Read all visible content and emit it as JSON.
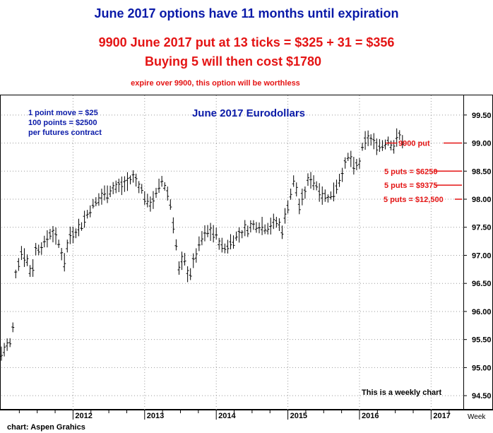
{
  "header": {
    "line1": "June 2017 options have 11 months until expiration",
    "line2": "9900 June 2017 put at 13 ticks = $325 + 31 = $356",
    "line3": "Buying 5 will then cost $1780",
    "line4": "expire over 9900, this option will be worthless"
  },
  "footer": {
    "credit": "chart: Aspen Grahics",
    "period_label": "Week"
  },
  "colors": {
    "header_blue": "#0a1aa8",
    "header_red": "#e41414",
    "bars": "#000000",
    "grid": "#9a9a9a",
    "annotation_red": "#e41414"
  },
  "chart_data": {
    "type": "ohlc-bar",
    "title": "June 2017 Eurodollars",
    "xlabel": "",
    "ylabel": "",
    "ylim": [
      94.25,
      99.85
    ],
    "y_ticks": [
      "94.50",
      "95.00",
      "95.50",
      "96.00",
      "96.50",
      "97.00",
      "97.50",
      "98.00",
      "98.50",
      "99.00",
      "99.50"
    ],
    "y_tick_values": [
      94.5,
      95.0,
      95.5,
      96.0,
      96.5,
      97.0,
      97.5,
      98.0,
      98.5,
      99.0,
      99.5
    ],
    "x_range": [
      2011.0,
      2017.45
    ],
    "x_ticks": [
      "2012",
      "2013",
      "2014",
      "2015",
      "2016",
      "2017"
    ],
    "x_tick_values": [
      2012,
      2013,
      2014,
      2015,
      2016,
      2017
    ],
    "grid": true,
    "notes": [
      "1 point move = $25",
      "100 points = $2500",
      "per futures contract"
    ],
    "footnote": "This is a weekly chart",
    "price_levels": [
      {
        "label": "9900 put",
        "value": 99.0
      },
      {
        "label": "5 puts = $6250",
        "value": 98.5
      },
      {
        "label": "5 puts = $9375",
        "value": 98.25
      },
      {
        "label": "5 puts = $12,500",
        "value": 98.0
      }
    ],
    "series": [
      {
        "anchors": [
          [
            2011.0,
            95.25
          ],
          [
            2011.08,
            95.4
          ],
          [
            2011.15,
            95.45
          ],
          [
            2011.2,
            96.7
          ],
          [
            2011.28,
            97.05
          ],
          [
            2011.35,
            96.95
          ],
          [
            2011.42,
            96.65
          ],
          [
            2011.48,
            97.1
          ],
          [
            2011.6,
            97.2
          ],
          [
            2011.7,
            97.45
          ],
          [
            2011.8,
            97.2
          ],
          [
            2011.88,
            96.9
          ],
          [
            2011.95,
            97.35
          ],
          [
            2012.1,
            97.5
          ],
          [
            2012.25,
            97.85
          ],
          [
            2012.4,
            98.05
          ],
          [
            2012.55,
            98.2
          ],
          [
            2012.7,
            98.25
          ],
          [
            2012.85,
            98.4
          ],
          [
            2012.95,
            98.2
          ],
          [
            2013.05,
            97.9
          ],
          [
            2013.15,
            98.05
          ],
          [
            2013.25,
            98.35
          ],
          [
            2013.35,
            98.0
          ],
          [
            2013.42,
            97.4
          ],
          [
            2013.48,
            96.75
          ],
          [
            2013.55,
            96.95
          ],
          [
            2013.62,
            96.6
          ],
          [
            2013.7,
            96.95
          ],
          [
            2013.8,
            97.3
          ],
          [
            2013.9,
            97.45
          ],
          [
            2014.0,
            97.35
          ],
          [
            2014.1,
            97.1
          ],
          [
            2014.25,
            97.3
          ],
          [
            2014.4,
            97.45
          ],
          [
            2014.55,
            97.55
          ],
          [
            2014.7,
            97.5
          ],
          [
            2014.85,
            97.6
          ],
          [
            2014.92,
            97.45
          ],
          [
            2015.0,
            97.9
          ],
          [
            2015.1,
            98.4
          ],
          [
            2015.15,
            97.85
          ],
          [
            2015.22,
            98.05
          ],
          [
            2015.3,
            98.4
          ],
          [
            2015.4,
            98.25
          ],
          [
            2015.5,
            98.05
          ],
          [
            2015.6,
            98.05
          ],
          [
            2015.7,
            98.3
          ],
          [
            2015.8,
            98.6
          ],
          [
            2015.86,
            98.8
          ],
          [
            2015.92,
            98.55
          ],
          [
            2016.0,
            98.65
          ],
          [
            2016.05,
            98.95
          ],
          [
            2016.12,
            99.1
          ],
          [
            2016.2,
            99.0
          ],
          [
            2016.3,
            98.95
          ],
          [
            2016.4,
            99.05
          ],
          [
            2016.48,
            98.95
          ],
          [
            2016.55,
            99.15
          ],
          [
            2016.6,
            99.05
          ]
        ],
        "sample_step_years": 0.04,
        "range_halfwidth": 0.12
      }
    ]
  }
}
